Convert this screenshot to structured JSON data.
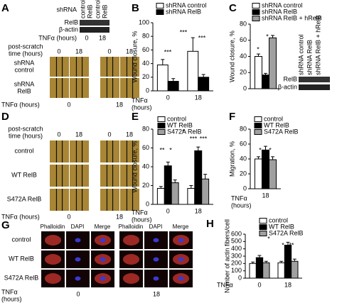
{
  "panel_a": {
    "label": "A",
    "blot": {
      "header": "shRNA",
      "lanes": [
        "control",
        "RelB",
        "control",
        "RelB"
      ],
      "rows": [
        "RelB",
        "β-actin"
      ],
      "tnf_label": "TNFα (hours)",
      "tnf_values": [
        "0",
        "18"
      ]
    },
    "scratch": {
      "time_label": [
        "post-scratch",
        "time (hours)"
      ],
      "times": [
        "0",
        "18",
        "0",
        "18"
      ],
      "rows": [
        [
          "shRNA",
          "control"
        ],
        [
          "shRNA",
          "RelB"
        ]
      ],
      "tnf_label": "TNFα (hours)",
      "tnf_values": [
        "0",
        "18"
      ]
    }
  },
  "panel_c_blot": {
    "lanes": [
      "shRNA control",
      "shRNA RelB",
      "shRNA RelB + hRelB"
    ],
    "rows": [
      "RelB",
      "β-actin"
    ]
  },
  "panel_d": {
    "label": "D",
    "time_label": [
      "post-scratch",
      "time (hours)"
    ],
    "times": [
      "0",
      "18",
      "0",
      "18"
    ],
    "rows": [
      "control",
      "WT RelB",
      "S472A RelB"
    ],
    "tnf_label": "TNFα (hours)",
    "tnf_values": [
      "0",
      "18"
    ]
  },
  "panel_g": {
    "label": "G",
    "columns": [
      "Phalloidin",
      "DAPI",
      "Merge",
      "Phalloidin",
      "DAPI",
      "Merge"
    ],
    "rows": [
      "control",
      "WT RelB",
      "S472A RelB"
    ],
    "tnf_label": [
      "TNFα",
      "(hours)"
    ],
    "tnf_values": [
      "0",
      "18"
    ]
  },
  "chart_data": [
    {
      "type": "bar",
      "panel": "B",
      "ylabel": "Wound closure, %",
      "xlabel": [
        "TNFα",
        "(hours)"
      ],
      "categories": [
        "0",
        "18"
      ],
      "ylim": [
        0,
        100
      ],
      "yticks": [
        0,
        20,
        40,
        60,
        80,
        100
      ],
      "series": [
        {
          "name": "shRNA control",
          "color": "#ffffff",
          "values": [
            38,
            58
          ],
          "errors": [
            8,
            20
          ]
        },
        {
          "name": "shRNA RelB",
          "color": "#000000",
          "values": [
            14,
            20
          ],
          "errors": [
            4,
            4
          ]
        }
      ],
      "annotations": [
        "***",
        "***",
        "***"
      ]
    },
    {
      "type": "bar",
      "panel": "C",
      "ylabel": "Wound closure, %",
      "categories": [
        null
      ],
      "ylim": [
        0,
        80
      ],
      "yticks": [
        0,
        20,
        40,
        60,
        80
      ],
      "series": [
        {
          "name": "shRNA control",
          "color": "#ffffff",
          "values": [
            40
          ],
          "errors": [
            3
          ]
        },
        {
          "name": "shRNA RelB",
          "color": "#000000",
          "values": [
            17
          ],
          "errors": [
            2
          ]
        },
        {
          "name": "shRNA RelB + hRelB",
          "color": "#a0a0a0",
          "values": [
            63
          ],
          "errors": [
            3
          ]
        }
      ],
      "annotations": [
        "*",
        "*"
      ]
    },
    {
      "type": "bar",
      "panel": "E",
      "ylabel": "Wound closure, %",
      "xlabel": [
        "TNFα",
        "(hours)"
      ],
      "categories": [
        "0",
        "18"
      ],
      "ylim": [
        0,
        80
      ],
      "yticks": [
        0,
        20,
        40,
        60,
        80
      ],
      "series": [
        {
          "name": "control",
          "color": "#ffffff",
          "values": [
            17,
            17
          ],
          "errors": [
            2,
            3
          ]
        },
        {
          "name": "WT RelB",
          "color": "#000000",
          "values": [
            41,
            57
          ],
          "errors": [
            4,
            4
          ]
        },
        {
          "name": "S472A RelB",
          "color": "#a0a0a0",
          "values": [
            23,
            27
          ],
          "errors": [
            3,
            5
          ]
        }
      ],
      "annotations": [
        "**",
        "*",
        "*",
        "***",
        "***"
      ]
    },
    {
      "type": "bar",
      "panel": "F",
      "ylabel": "Migration, %",
      "xlabel": [
        "TNFα",
        "(hours)"
      ],
      "categories": [
        "18"
      ],
      "ylim": [
        0,
        80
      ],
      "yticks": [
        0,
        20,
        40,
        60,
        80
      ],
      "series": [
        {
          "name": "control",
          "color": "#ffffff",
          "values": [
            40
          ],
          "errors": [
            3
          ]
        },
        {
          "name": "WT RelB",
          "color": "#000000",
          "values": [
            52
          ],
          "errors": [
            5
          ]
        },
        {
          "name": "S472A RelB",
          "color": "#a0a0a0",
          "values": [
            39
          ],
          "errors": [
            4
          ]
        }
      ],
      "annotations": [
        "*",
        "*"
      ]
    },
    {
      "type": "bar",
      "panel": "H",
      "ylabel": "Number of actin fibers/cell",
      "xlabel": [
        "TNFα"
      ],
      "categories": [
        "0",
        "18"
      ],
      "ylim": [
        0,
        600
      ],
      "yticks": [
        0,
        100,
        200,
        300,
        400,
        500,
        600
      ],
      "series": [
        {
          "name": "control",
          "color": "#ffffff",
          "values": [
            200,
            210
          ],
          "errors": [
            20,
            20
          ]
        },
        {
          "name": "WT RelB",
          "color": "#000000",
          "values": [
            280,
            450
          ],
          "errors": [
            30,
            40
          ]
        },
        {
          "name": "S472A RelB",
          "color": "#a0a0a0",
          "values": [
            210,
            230
          ],
          "errors": [
            20,
            30
          ]
        }
      ],
      "annotations": [
        "*",
        "*",
        "**"
      ]
    }
  ]
}
